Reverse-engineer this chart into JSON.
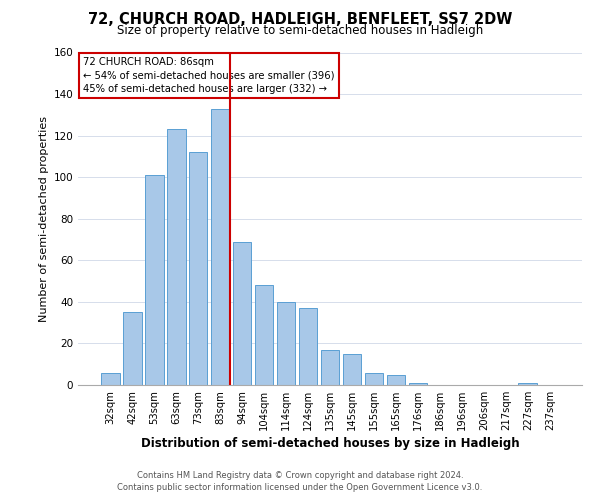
{
  "title": "72, CHURCH ROAD, HADLEIGH, BENFLEET, SS7 2DW",
  "subtitle": "Size of property relative to semi-detached houses in Hadleigh",
  "xlabel": "Distribution of semi-detached houses by size in Hadleigh",
  "ylabel": "Number of semi-detached properties",
  "footer_line1": "Contains HM Land Registry data © Crown copyright and database right 2024.",
  "footer_line2": "Contains public sector information licensed under the Open Government Licence v3.0.",
  "bar_labels": [
    "32sqm",
    "42sqm",
    "53sqm",
    "63sqm",
    "73sqm",
    "83sqm",
    "94sqm",
    "104sqm",
    "114sqm",
    "124sqm",
    "135sqm",
    "145sqm",
    "155sqm",
    "165sqm",
    "176sqm",
    "186sqm",
    "196sqm",
    "206sqm",
    "217sqm",
    "227sqm",
    "237sqm"
  ],
  "bar_heights": [
    6,
    35,
    101,
    123,
    112,
    133,
    69,
    48,
    40,
    37,
    17,
    15,
    6,
    5,
    1,
    0,
    0,
    0,
    0,
    1,
    0
  ],
  "bar_color": "#a8c8e8",
  "bar_edgecolor": "#5a9fd4",
  "marker_index": 5,
  "marker_color": "#cc0000",
  "annotation_title": "72 CHURCH ROAD: 86sqm",
  "annotation_line1": "← 54% of semi-detached houses are smaller (396)",
  "annotation_line2": "45% of semi-detached houses are larger (332) →",
  "annotation_box_edgecolor": "#cc0000",
  "ylim": [
    0,
    160
  ],
  "yticks": [
    0,
    20,
    40,
    60,
    80,
    100,
    120,
    140,
    160
  ]
}
